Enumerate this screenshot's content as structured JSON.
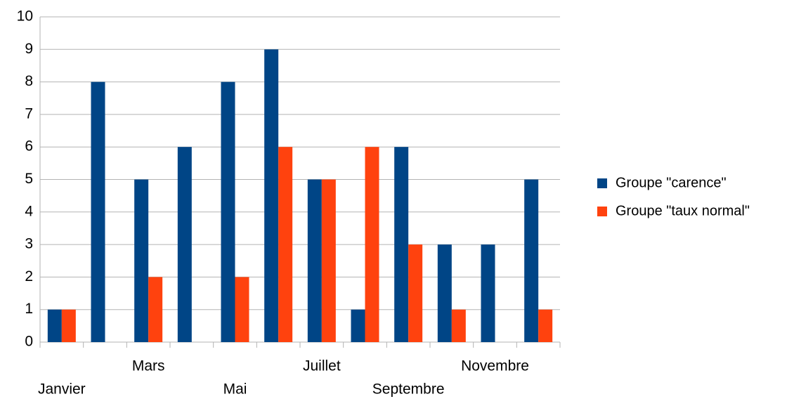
{
  "chart_data": {
    "type": "bar",
    "categories": [
      "Janvier",
      null,
      "Mars",
      null,
      "Mai",
      null,
      "Juillet",
      null,
      "Septembre",
      null,
      "Novembre",
      null
    ],
    "series": [
      {
        "name": "Groupe \"carence\"",
        "color": "#004586",
        "values": [
          1,
          8,
          5,
          6,
          8,
          9,
          5,
          1,
          6,
          3,
          3,
          5
        ]
      },
      {
        "name": "Groupe \"taux normal\"",
        "color": "#ff420e",
        "values": [
          1,
          0,
          2,
          0,
          2,
          6,
          5,
          6,
          3,
          1,
          0,
          1
        ]
      }
    ],
    "ylim": [
      0,
      10
    ],
    "yticks": [
      0,
      1,
      2,
      3,
      4,
      5,
      6,
      7,
      8,
      9,
      10
    ],
    "grid": true,
    "legend": "right"
  }
}
